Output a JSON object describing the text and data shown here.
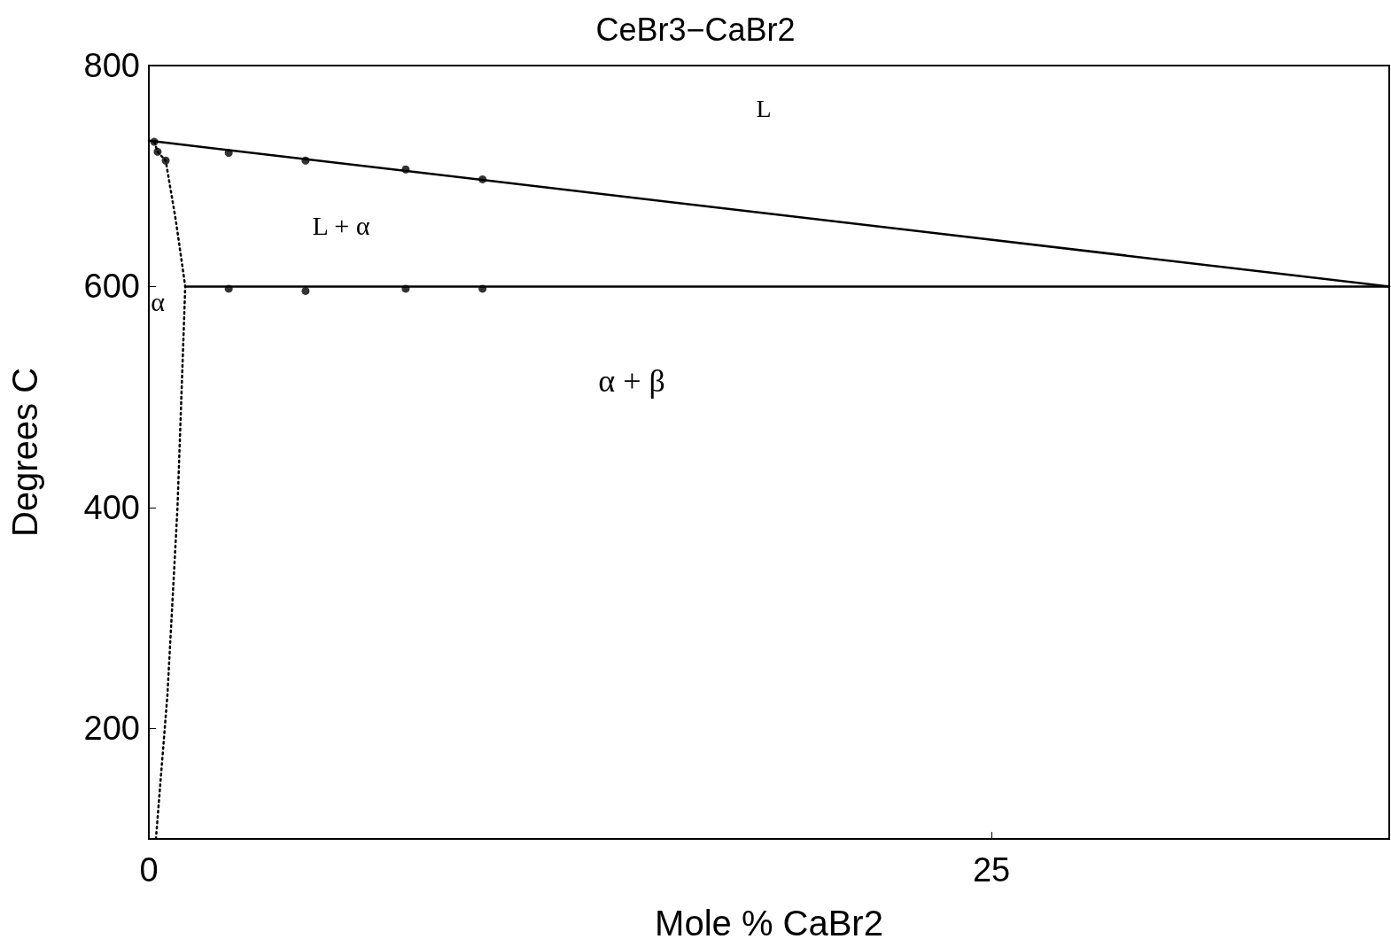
{
  "chart_data": {
    "type": "line",
    "title": "CeBr3−CaBr2",
    "xlabel": "Mole % CaBr2",
    "ylabel": "Degrees C",
    "xlim": [
      0,
      36.8
    ],
    "xticks": [
      0,
      25
    ],
    "ylim": [
      100,
      800
    ],
    "yticks": [
      200,
      400,
      600,
      800
    ],
    "grid": false,
    "series": [
      {
        "color": "#000000",
        "x": [
          0,
          36.8
        ],
        "values": [
          732,
          600
        ],
        "marker": "none",
        "line_style": "solid"
      },
      {
        "color": "#000000",
        "x": [
          1.08,
          36.8
        ],
        "values": [
          600,
          600
        ],
        "marker": "none",
        "line_style": "solid"
      },
      {
        "color": "#000000",
        "x": [
          0.16,
          0.26,
          0.5,
          0.8,
          1.08,
          0.85,
          0.55,
          0.21
        ],
        "values": [
          731,
          722,
          714,
          660,
          600,
          400,
          230,
          100
        ],
        "marker": "none",
        "line_style": "dotted"
      },
      {
        "type": "scatter",
        "color": "#000000",
        "x": [
          0.16,
          0.26,
          0.5,
          2.37,
          4.65,
          7.62,
          9.9,
          2.37,
          4.65,
          7.62,
          9.9
        ],
        "values": [
          731,
          722,
          714,
          721,
          714,
          706,
          697,
          598,
          596,
          598,
          598
        ],
        "marker": "circle"
      }
    ],
    "annotations": [
      "L",
      "L + α",
      "α + β",
      "α"
    ]
  }
}
